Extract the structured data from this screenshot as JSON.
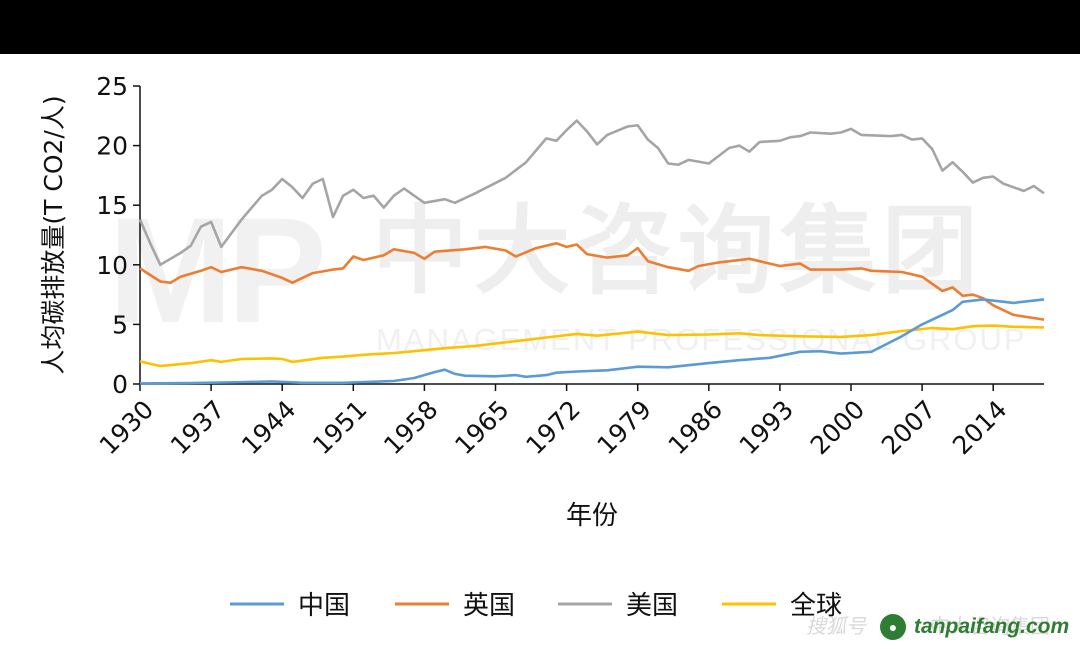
{
  "watermark": {
    "logo": "MP",
    "company_cn": "中大咨询集团",
    "company_en": "MANAGEMENT PROFESSIONAL GROUP",
    "footer_left": "搜狐号",
    "footer_right": "中大咨询集团",
    "site": "tanpaifang.com"
  },
  "chart_data": {
    "type": "line",
    "title": "",
    "xlabel": "年份",
    "ylabel": "人均碳排放量(T CO2/人)",
    "xlim": [
      1930,
      2019
    ],
    "ylim": [
      0,
      25
    ],
    "yticks": [
      "0",
      "5",
      "10",
      "15",
      "20",
      "25"
    ],
    "xticks": [
      "1930",
      "1937",
      "1944",
      "1951",
      "1958",
      "1965",
      "1972",
      "1979",
      "1986",
      "1993",
      "2000",
      "2007",
      "2014"
    ],
    "xtick_values": [
      1930,
      1937,
      1944,
      1951,
      1958,
      1965,
      1972,
      1979,
      1986,
      1993,
      2000,
      2007,
      2014
    ],
    "grid": false,
    "legend_position": "bottom",
    "series": [
      {
        "name": "中国",
        "color": "#5B9BD5",
        "points": [
          [
            1930,
            0.05
          ],
          [
            1935,
            0.08
          ],
          [
            1940,
            0.15
          ],
          [
            1943,
            0.22
          ],
          [
            1946,
            0.1
          ],
          [
            1950,
            0.1
          ],
          [
            1955,
            0.25
          ],
          [
            1957,
            0.5
          ],
          [
            1959,
            1.0
          ],
          [
            1960,
            1.2
          ],
          [
            1961,
            0.85
          ],
          [
            1962,
            0.7
          ],
          [
            1965,
            0.65
          ],
          [
            1967,
            0.75
          ],
          [
            1968,
            0.6
          ],
          [
            1970,
            0.75
          ],
          [
            1971,
            0.95
          ],
          [
            1973,
            1.05
          ],
          [
            1976,
            1.15
          ],
          [
            1979,
            1.45
          ],
          [
            1982,
            1.4
          ],
          [
            1986,
            1.75
          ],
          [
            1989,
            2.0
          ],
          [
            1992,
            2.2
          ],
          [
            1995,
            2.7
          ],
          [
            1997,
            2.75
          ],
          [
            1999,
            2.55
          ],
          [
            2002,
            2.7
          ],
          [
            2005,
            4.0
          ],
          [
            2007,
            5.0
          ],
          [
            2010,
            6.2
          ],
          [
            2011,
            6.9
          ],
          [
            2013,
            7.1
          ],
          [
            2016,
            6.8
          ],
          [
            2019,
            7.1
          ]
        ]
      },
      {
        "name": "英国",
        "color": "#ED7D31",
        "points": [
          [
            1930,
            9.7
          ],
          [
            1932,
            8.6
          ],
          [
            1933,
            8.5
          ],
          [
            1934,
            9.0
          ],
          [
            1936,
            9.5
          ],
          [
            1937,
            9.8
          ],
          [
            1938,
            9.4
          ],
          [
            1940,
            9.8
          ],
          [
            1942,
            9.5
          ],
          [
            1944,
            8.9
          ],
          [
            1945,
            8.5
          ],
          [
            1947,
            9.3
          ],
          [
            1949,
            9.6
          ],
          [
            1950,
            9.7
          ],
          [
            1951,
            10.7
          ],
          [
            1952,
            10.4
          ],
          [
            1954,
            10.8
          ],
          [
            1955,
            11.3
          ],
          [
            1957,
            11.0
          ],
          [
            1958,
            10.5
          ],
          [
            1959,
            11.1
          ],
          [
            1962,
            11.3
          ],
          [
            1964,
            11.5
          ],
          [
            1966,
            11.2
          ],
          [
            1967,
            10.7
          ],
          [
            1969,
            11.4
          ],
          [
            1971,
            11.8
          ],
          [
            1972,
            11.5
          ],
          [
            1973,
            11.7
          ],
          [
            1974,
            10.9
          ],
          [
            1976,
            10.6
          ],
          [
            1978,
            10.8
          ],
          [
            1979,
            11.4
          ],
          [
            1980,
            10.3
          ],
          [
            1982,
            9.8
          ],
          [
            1984,
            9.5
          ],
          [
            1985,
            9.9
          ],
          [
            1987,
            10.2
          ],
          [
            1990,
            10.5
          ],
          [
            1993,
            9.9
          ],
          [
            1995,
            10.1
          ],
          [
            1996,
            9.6
          ],
          [
            1999,
            9.6
          ],
          [
            2001,
            9.7
          ],
          [
            2002,
            9.5
          ],
          [
            2005,
            9.4
          ],
          [
            2007,
            9.0
          ],
          [
            2009,
            7.8
          ],
          [
            2010,
            8.1
          ],
          [
            2011,
            7.4
          ],
          [
            2012,
            7.5
          ],
          [
            2013,
            7.2
          ],
          [
            2014,
            6.6
          ],
          [
            2016,
            5.8
          ],
          [
            2019,
            5.4
          ]
        ]
      },
      {
        "name": "美国",
        "color": "#A5A5A5",
        "points": [
          [
            1930,
            13.8
          ],
          [
            1931,
            11.8
          ],
          [
            1932,
            10.0
          ],
          [
            1934,
            11.0
          ],
          [
            1935,
            11.6
          ],
          [
            1936,
            13.2
          ],
          [
            1937,
            13.6
          ],
          [
            1938,
            11.5
          ],
          [
            1940,
            13.8
          ],
          [
            1942,
            15.8
          ],
          [
            1943,
            16.3
          ],
          [
            1944,
            17.2
          ],
          [
            1945,
            16.5
          ],
          [
            1946,
            15.6
          ],
          [
            1947,
            16.8
          ],
          [
            1948,
            17.2
          ],
          [
            1949,
            14.0
          ],
          [
            1950,
            15.8
          ],
          [
            1951,
            16.3
          ],
          [
            1952,
            15.6
          ],
          [
            1953,
            15.8
          ],
          [
            1954,
            14.8
          ],
          [
            1955,
            15.8
          ],
          [
            1956,
            16.4
          ],
          [
            1957,
            15.8
          ],
          [
            1958,
            15.2
          ],
          [
            1960,
            15.5
          ],
          [
            1961,
            15.2
          ],
          [
            1963,
            16.0
          ],
          [
            1966,
            17.3
          ],
          [
            1968,
            18.6
          ],
          [
            1970,
            20.6
          ],
          [
            1971,
            20.4
          ],
          [
            1972,
            21.3
          ],
          [
            1973,
            22.1
          ],
          [
            1974,
            21.2
          ],
          [
            1975,
            20.1
          ],
          [
            1976,
            20.9
          ],
          [
            1978,
            21.6
          ],
          [
            1979,
            21.7
          ],
          [
            1980,
            20.5
          ],
          [
            1981,
            19.8
          ],
          [
            1982,
            18.5
          ],
          [
            1983,
            18.4
          ],
          [
            1984,
            18.8
          ],
          [
            1986,
            18.5
          ],
          [
            1988,
            19.8
          ],
          [
            1989,
            20.0
          ],
          [
            1990,
            19.5
          ],
          [
            1991,
            20.3
          ],
          [
            1993,
            20.4
          ],
          [
            1994,
            20.7
          ],
          [
            1995,
            20.8
          ],
          [
            1996,
            21.1
          ],
          [
            1998,
            21.0
          ],
          [
            1999,
            21.1
          ],
          [
            2000,
            21.4
          ],
          [
            2001,
            20.9
          ],
          [
            2004,
            20.8
          ],
          [
            2005,
            20.9
          ],
          [
            2006,
            20.5
          ],
          [
            2007,
            20.6
          ],
          [
            2008,
            19.7
          ],
          [
            2009,
            17.9
          ],
          [
            2010,
            18.6
          ],
          [
            2011,
            17.8
          ],
          [
            2012,
            16.9
          ],
          [
            2013,
            17.3
          ],
          [
            2014,
            17.4
          ],
          [
            2015,
            16.8
          ],
          [
            2017,
            16.2
          ],
          [
            2018,
            16.6
          ],
          [
            2019,
            16.0
          ]
        ]
      },
      {
        "name": "全球",
        "color": "#FFC000",
        "points": [
          [
            1930,
            1.9
          ],
          [
            1932,
            1.5
          ],
          [
            1935,
            1.75
          ],
          [
            1937,
            2.0
          ],
          [
            1938,
            1.85
          ],
          [
            1940,
            2.1
          ],
          [
            1943,
            2.15
          ],
          [
            1944,
            2.1
          ],
          [
            1945,
            1.85
          ],
          [
            1948,
            2.2
          ],
          [
            1950,
            2.3
          ],
          [
            1952,
            2.45
          ],
          [
            1955,
            2.6
          ],
          [
            1957,
            2.75
          ],
          [
            1960,
            3.0
          ],
          [
            1963,
            3.2
          ],
          [
            1966,
            3.5
          ],
          [
            1970,
            3.9
          ],
          [
            1973,
            4.2
          ],
          [
            1975,
            4.05
          ],
          [
            1979,
            4.4
          ],
          [
            1982,
            4.1
          ],
          [
            1986,
            4.15
          ],
          [
            1989,
            4.25
          ],
          [
            1991,
            4.1
          ],
          [
            1995,
            4.0
          ],
          [
            1999,
            3.95
          ],
          [
            2002,
            4.1
          ],
          [
            2005,
            4.45
          ],
          [
            2008,
            4.7
          ],
          [
            2010,
            4.6
          ],
          [
            2012,
            4.85
          ],
          [
            2014,
            4.9
          ],
          [
            2016,
            4.8
          ],
          [
            2019,
            4.75
          ]
        ]
      }
    ]
  }
}
